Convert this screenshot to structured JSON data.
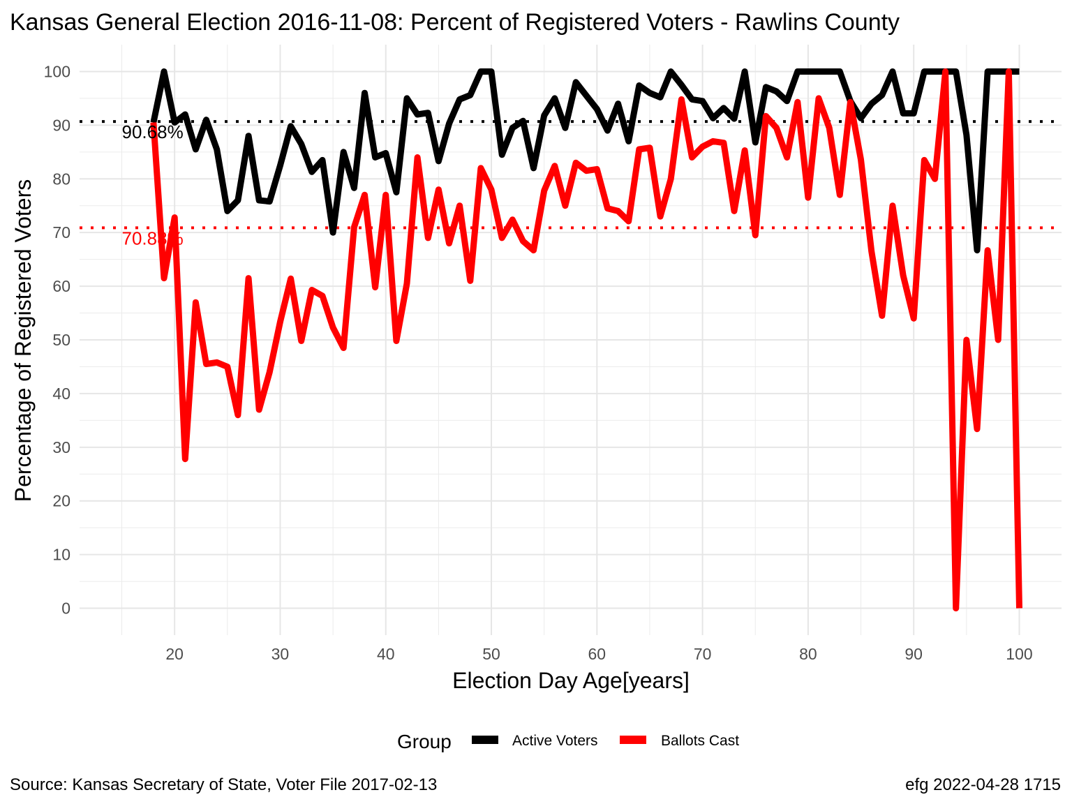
{
  "chart_data": {
    "type": "line",
    "title": "Kansas General Election 2016-11-08:  Percent of Registered Voters - Rawlins County",
    "xlabel": "Election Day Age[years]",
    "ylabel": "Percentage of Registered Voters",
    "xlim": [
      11,
      104
    ],
    "ylim": [
      -5,
      105
    ],
    "x_ticks": [
      20,
      30,
      40,
      50,
      60,
      70,
      80,
      90,
      100
    ],
    "y_ticks": [
      0,
      10,
      20,
      30,
      40,
      50,
      60,
      70,
      80,
      90,
      100
    ],
    "grid": true,
    "legend": {
      "title": "Group",
      "position": "bottom",
      "entries": [
        {
          "name": "Active Voters",
          "color": "#000000"
        },
        {
          "name": "Ballots Cast",
          "color": "#ff0000"
        }
      ]
    },
    "reference_lines": [
      {
        "series": "Active Voters",
        "y": 90.68,
        "label": "90.68%",
        "color": "#000000"
      },
      {
        "series": "Ballots Cast",
        "y": 70.88,
        "label": "70.88%",
        "color": "#ff0000"
      }
    ],
    "x": [
      18,
      19,
      20,
      21,
      22,
      23,
      24,
      25,
      26,
      27,
      28,
      29,
      30,
      31,
      32,
      33,
      34,
      35,
      36,
      37,
      38,
      39,
      40,
      41,
      42,
      43,
      44,
      45,
      46,
      47,
      48,
      49,
      50,
      51,
      52,
      53,
      54,
      55,
      56,
      57,
      58,
      59,
      60,
      61,
      62,
      63,
      64,
      65,
      66,
      67,
      68,
      69,
      70,
      71,
      72,
      73,
      74,
      75,
      76,
      77,
      78,
      79,
      80,
      81,
      82,
      83,
      84,
      85,
      86,
      87,
      88,
      89,
      90,
      91,
      92,
      93,
      94,
      95,
      96,
      97,
      98,
      99,
      100
    ],
    "series": [
      {
        "name": "Active Voters",
        "color": "#000000",
        "values": [
          90.5,
          100,
          90.5,
          92,
          85.5,
          91,
          85.5,
          74,
          76,
          88,
          76,
          75.8,
          82.5,
          89.8,
          86.5,
          81.3,
          83.5,
          70,
          85,
          78.3,
          96,
          84,
          84.8,
          77.5,
          95,
          92,
          92.3,
          83.3,
          90.3,
          94.8,
          95.6,
          100,
          100,
          84.5,
          89.5,
          90.8,
          82,
          91.8,
          95,
          89.5,
          98,
          95.5,
          93,
          89,
          94,
          87,
          97.4,
          96,
          95.2,
          100,
          97.5,
          94.8,
          94.5,
          91.3,
          93.2,
          91.2,
          100,
          86.8,
          97.1,
          96.3,
          94.5,
          100,
          100,
          100,
          100,
          100,
          94.5,
          91.3,
          94,
          95.6,
          100,
          92.2,
          92.2,
          100,
          100,
          100,
          100,
          88.2,
          66.7,
          100,
          100,
          100,
          100
        ]
      },
      {
        "name": "Ballots Cast",
        "color": "#ff0000",
        "values": [
          90.5,
          61.5,
          72.8,
          27.8,
          57,
          45.5,
          45.8,
          45,
          36,
          61.5,
          37,
          44,
          53.4,
          61.4,
          49.8,
          59.3,
          58.2,
          52.3,
          48.5,
          71,
          77,
          59.8,
          77,
          49.8,
          60.5,
          84,
          69,
          78,
          68,
          75,
          61,
          82,
          78,
          69,
          72.4,
          68.4,
          66.7,
          77.8,
          82.4,
          75,
          83,
          81.5,
          81.8,
          74.5,
          74,
          72.1,
          85.5,
          85.8,
          73,
          80,
          94.8,
          84,
          86,
          87,
          86.7,
          74,
          85.3,
          69.5,
          91.7,
          89.5,
          84,
          94.3,
          76.5,
          95,
          89.5,
          77,
          94.3,
          83.6,
          66.5,
          54.5,
          75,
          62,
          54,
          83.5,
          80,
          100,
          0,
          50,
          33.4,
          66.7,
          50,
          100,
          0
        ]
      }
    ]
  },
  "caption": {
    "source": "Source:  Kansas Secretary of State, Voter File  2017-02-13",
    "credit": "efg 2022-04-28 1715"
  }
}
